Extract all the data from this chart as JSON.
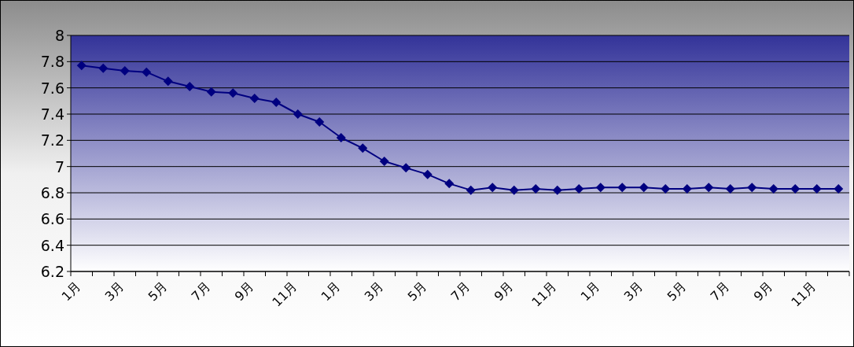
{
  "chart_data": {
    "type": "line",
    "categories": [
      "1月",
      null,
      "3月",
      null,
      "5月",
      null,
      "7月",
      null,
      "9月",
      null,
      "11月",
      null,
      "1月",
      null,
      "3月",
      null,
      "5月",
      null,
      "7月",
      null,
      "9月",
      null,
      "11月",
      null,
      "1月",
      null,
      "3月",
      null,
      "5月",
      null,
      "7月",
      null,
      "9月",
      null,
      "11月",
      null
    ],
    "series": [
      {
        "color": "#000080",
        "values": [
          7.77,
          7.75,
          7.73,
          7.72,
          7.65,
          7.61,
          7.57,
          7.56,
          7.52,
          7.49,
          7.4,
          7.34,
          7.22,
          7.14,
          7.04,
          6.99,
          6.94,
          6.87,
          6.82,
          6.84,
          6.82,
          6.83,
          6.82,
          6.83,
          6.84,
          6.84,
          6.84,
          6.83,
          6.83,
          6.84,
          6.83,
          6.84,
          6.83,
          6.83,
          6.83,
          6.83
        ]
      }
    ],
    "ylim": [
      6.2,
      8
    ],
    "yticks": [
      6.2,
      6.4,
      6.6,
      6.8,
      7,
      7.2,
      7.4,
      7.6,
      7.8,
      8
    ],
    "grid": "y",
    "marker": "diamond",
    "line_style": "solid"
  }
}
